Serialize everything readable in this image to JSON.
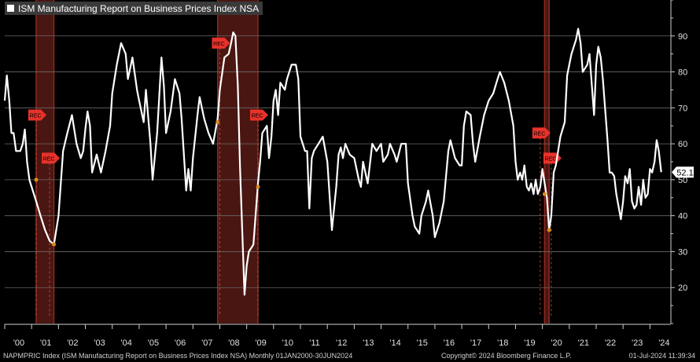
{
  "legend": {
    "label": "ISM Manufacturing Report on Business Prices Index NSA"
  },
  "footer": {
    "source": "NAPMPRIC Index (ISM Manufacturing Report on Business Prices Index NSA)  Monthly 01JAN2000-30JUN2024",
    "copyright": "Copyright© 2024 Bloomberg Finance L.P.",
    "timestamp": "01-Jul-2024 11:39:34"
  },
  "colors": {
    "background": "#000000",
    "line": "#ffffff",
    "grid": "#6a6a6a",
    "recession_shade": "#4a1612",
    "recession_edge": "#8a2a22",
    "rec_marker": "#e8322a",
    "dot": "#d98a1c",
    "last_label_bg": "#ffffff",
    "last_label_text": "#000000"
  },
  "chart_data": {
    "type": "line",
    "title": "ISM Manufacturing Report on Business Prices Index NSA",
    "series": [
      {
        "name": "ISM Manufacturing Report on Business Prices Index NSA",
        "points": [
          [
            2000.0,
            72
          ],
          [
            2000.08,
            79
          ],
          [
            2000.17,
            72
          ],
          [
            2000.25,
            63
          ],
          [
            2000.33,
            63
          ],
          [
            2000.42,
            58
          ],
          [
            2000.5,
            58
          ],
          [
            2000.58,
            58
          ],
          [
            2000.67,
            60
          ],
          [
            2000.75,
            64
          ],
          [
            2000.83,
            55
          ],
          [
            2000.92,
            50
          ],
          [
            2001.0,
            48
          ],
          [
            2001.17,
            44
          ],
          [
            2001.33,
            40
          ],
          [
            2001.5,
            36
          ],
          [
            2001.67,
            33
          ],
          [
            2001.83,
            32
          ],
          [
            2002.0,
            40
          ],
          [
            2002.17,
            58
          ],
          [
            2002.33,
            63
          ],
          [
            2002.5,
            68
          ],
          [
            2002.67,
            60
          ],
          [
            2002.83,
            56
          ],
          [
            2002.92,
            58
          ],
          [
            2003.0,
            64
          ],
          [
            2003.08,
            69
          ],
          [
            2003.17,
            65
          ],
          [
            2003.25,
            52
          ],
          [
            2003.42,
            57
          ],
          [
            2003.58,
            52
          ],
          [
            2003.75,
            58
          ],
          [
            2003.92,
            65
          ],
          [
            2004.0,
            74
          ],
          [
            2004.17,
            82
          ],
          [
            2004.33,
            88
          ],
          [
            2004.5,
            85
          ],
          [
            2004.58,
            78
          ],
          [
            2004.75,
            84
          ],
          [
            2004.92,
            75
          ],
          [
            2005.0,
            72
          ],
          [
            2005.17,
            66
          ],
          [
            2005.25,
            75
          ],
          [
            2005.42,
            60
          ],
          [
            2005.5,
            50
          ],
          [
            2005.67,
            63
          ],
          [
            2005.83,
            84
          ],
          [
            2005.92,
            76
          ],
          [
            2006.0,
            63
          ],
          [
            2006.17,
            69
          ],
          [
            2006.33,
            78
          ],
          [
            2006.5,
            74
          ],
          [
            2006.58,
            67
          ],
          [
            2006.75,
            47
          ],
          [
            2006.83,
            53
          ],
          [
            2006.92,
            47
          ],
          [
            2007.0,
            56
          ],
          [
            2007.17,
            68
          ],
          [
            2007.25,
            73
          ],
          [
            2007.42,
            67
          ],
          [
            2007.58,
            63
          ],
          [
            2007.75,
            60
          ],
          [
            2007.92,
            67
          ],
          [
            2008.0,
            75
          ],
          [
            2008.17,
            84
          ],
          [
            2008.33,
            85
          ],
          [
            2008.42,
            88
          ],
          [
            2008.5,
            91
          ],
          [
            2008.58,
            90
          ],
          [
            2008.67,
            76
          ],
          [
            2008.75,
            54
          ],
          [
            2008.83,
            37
          ],
          [
            2008.92,
            18
          ],
          [
            2009.0,
            26
          ],
          [
            2009.08,
            30
          ],
          [
            2009.17,
            31
          ],
          [
            2009.25,
            32
          ],
          [
            2009.42,
            49
          ],
          [
            2009.5,
            55
          ],
          [
            2009.58,
            63
          ],
          [
            2009.75,
            65
          ],
          [
            2009.83,
            56
          ],
          [
            2009.92,
            62
          ],
          [
            2010.0,
            72
          ],
          [
            2010.08,
            75
          ],
          [
            2010.17,
            68
          ],
          [
            2010.25,
            77
          ],
          [
            2010.42,
            75
          ],
          [
            2010.5,
            78
          ],
          [
            2010.67,
            82
          ],
          [
            2010.83,
            82
          ],
          [
            2010.92,
            78
          ],
          [
            2011.0,
            62
          ],
          [
            2011.17,
            58
          ],
          [
            2011.25,
            58
          ],
          [
            2011.33,
            42
          ],
          [
            2011.42,
            56
          ],
          [
            2011.5,
            58
          ],
          [
            2011.67,
            60
          ],
          [
            2011.83,
            62
          ],
          [
            2012.0,
            55
          ],
          [
            2012.17,
            36
          ],
          [
            2012.33,
            48
          ],
          [
            2012.42,
            57
          ],
          [
            2012.5,
            59
          ],
          [
            2012.58,
            56
          ],
          [
            2012.67,
            60
          ],
          [
            2012.83,
            57
          ],
          [
            2013.0,
            56
          ],
          [
            2013.17,
            50
          ],
          [
            2013.25,
            48
          ],
          [
            2013.33,
            55
          ],
          [
            2013.5,
            49
          ],
          [
            2013.67,
            60
          ],
          [
            2013.83,
            58
          ],
          [
            2014.0,
            60
          ],
          [
            2014.08,
            55
          ],
          [
            2014.25,
            57
          ],
          [
            2014.33,
            60
          ],
          [
            2014.5,
            57
          ],
          [
            2014.58,
            55
          ],
          [
            2014.75,
            60
          ],
          [
            2014.92,
            60
          ],
          [
            2015.0,
            49
          ],
          [
            2015.17,
            40
          ],
          [
            2015.25,
            37
          ],
          [
            2015.42,
            35
          ],
          [
            2015.5,
            40
          ],
          [
            2015.67,
            44
          ],
          [
            2015.75,
            47
          ],
          [
            2015.92,
            40
          ],
          [
            2016.0,
            34
          ],
          [
            2016.17,
            38
          ],
          [
            2016.33,
            44
          ],
          [
            2016.5,
            58
          ],
          [
            2016.58,
            61
          ],
          [
            2016.75,
            56
          ],
          [
            2016.92,
            54
          ],
          [
            2017.0,
            54
          ],
          [
            2017.08,
            65
          ],
          [
            2017.17,
            69
          ],
          [
            2017.33,
            68
          ],
          [
            2017.42,
            60
          ],
          [
            2017.5,
            55
          ],
          [
            2017.67,
            62
          ],
          [
            2017.83,
            68
          ],
          [
            2018.0,
            72
          ],
          [
            2018.17,
            74
          ],
          [
            2018.33,
            78
          ],
          [
            2018.42,
            80
          ],
          [
            2018.58,
            77
          ],
          [
            2018.75,
            72
          ],
          [
            2018.92,
            65
          ],
          [
            2019.0,
            55
          ],
          [
            2019.08,
            50
          ],
          [
            2019.17,
            52
          ],
          [
            2019.25,
            50
          ],
          [
            2019.33,
            54
          ],
          [
            2019.42,
            48
          ],
          [
            2019.5,
            47
          ],
          [
            2019.58,
            49
          ],
          [
            2019.67,
            46
          ],
          [
            2019.75,
            50
          ],
          [
            2019.83,
            46
          ],
          [
            2019.92,
            48
          ],
          [
            2020.0,
            53
          ],
          [
            2020.17,
            45
          ],
          [
            2020.25,
            36
          ],
          [
            2020.33,
            40
          ],
          [
            2020.42,
            52
          ],
          [
            2020.5,
            54
          ],
          [
            2020.67,
            62
          ],
          [
            2020.83,
            66
          ],
          [
            2020.92,
            79
          ],
          [
            2021.0,
            82
          ],
          [
            2021.08,
            85
          ],
          [
            2021.25,
            89
          ],
          [
            2021.33,
            92
          ],
          [
            2021.42,
            88
          ],
          [
            2021.5,
            80
          ],
          [
            2021.67,
            82
          ],
          [
            2021.75,
            85
          ],
          [
            2021.92,
            68
          ],
          [
            2022.0,
            82
          ],
          [
            2022.08,
            87
          ],
          [
            2022.17,
            84
          ],
          [
            2022.25,
            78
          ],
          [
            2022.42,
            61
          ],
          [
            2022.5,
            52
          ],
          [
            2022.58,
            52
          ],
          [
            2022.67,
            51
          ],
          [
            2022.75,
            46
          ],
          [
            2022.92,
            39
          ],
          [
            2023.0,
            44
          ],
          [
            2023.08,
            51
          ],
          [
            2023.17,
            49
          ],
          [
            2023.25,
            53
          ],
          [
            2023.33,
            44
          ],
          [
            2023.42,
            42
          ],
          [
            2023.5,
            43
          ],
          [
            2023.58,
            48
          ],
          [
            2023.67,
            43
          ],
          [
            2023.75,
            50
          ],
          [
            2023.83,
            45
          ],
          [
            2023.92,
            46
          ],
          [
            2024.0,
            53
          ],
          [
            2024.08,
            52
          ],
          [
            2024.17,
            55
          ],
          [
            2024.25,
            61
          ],
          [
            2024.33,
            58
          ],
          [
            2024.42,
            52.1
          ]
        ]
      }
    ],
    "last_value": "52.1",
    "y_ticks": [
      20,
      30,
      40,
      50,
      60,
      70,
      80,
      90
    ],
    "ylim": [
      10,
      100
    ],
    "xlim": [
      2000.0,
      2024.75
    ],
    "x_ticks": [
      {
        "label": "'00",
        "year": 2000
      },
      {
        "label": "'01",
        "year": 2001
      },
      {
        "label": "'02",
        "year": 2002
      },
      {
        "label": "'03",
        "year": 2003
      },
      {
        "label": "'04",
        "year": 2004
      },
      {
        "label": "'05",
        "year": 2005
      },
      {
        "label": "'06",
        "year": 2006
      },
      {
        "label": "'07",
        "year": 2007
      },
      {
        "label": "'08",
        "year": 2008
      },
      {
        "label": "'09",
        "year": 2009
      },
      {
        "label": "'10",
        "year": 2010
      },
      {
        "label": "'11",
        "year": 2011
      },
      {
        "label": "'12",
        "year": 2012
      },
      {
        "label": "'13",
        "year": 2013
      },
      {
        "label": "'14",
        "year": 2014
      },
      {
        "label": "'15",
        "year": 2015
      },
      {
        "label": "'16",
        "year": 2016
      },
      {
        "label": "'17",
        "year": 2017
      },
      {
        "label": "'18",
        "year": 2018
      },
      {
        "label": "'19",
        "year": 2019
      },
      {
        "label": "'20",
        "year": 2020
      },
      {
        "label": "'21",
        "year": 2021
      },
      {
        "label": "'22",
        "year": 2022
      },
      {
        "label": "'23",
        "year": 2023
      },
      {
        "label": "'24",
        "year": 2024
      }
    ],
    "recessions": [
      {
        "start": 2001.17,
        "end": 2001.83,
        "start_value": 50,
        "end_value": 32
      },
      {
        "start": 2007.92,
        "end": 2009.42,
        "start_value": 66,
        "end_value": 48
      },
      {
        "start": 2020.08,
        "end": 2020.25,
        "start_value": 46,
        "end_value": 36
      }
    ],
    "markers": [
      {
        "label": "REC",
        "year": 2001.17,
        "value": 68
      },
      {
        "label": "REC",
        "year": 2001.67,
        "value": 56
      },
      {
        "label": "REC",
        "year": 2008.0,
        "value": 88
      },
      {
        "label": "REC",
        "year": 2009.42,
        "value": 68
      },
      {
        "label": "REC",
        "year": 2019.92,
        "value": 63
      },
      {
        "label": "REC",
        "year": 2020.33,
        "value": 56
      }
    ],
    "grid": true,
    "legend_position": "top-left"
  }
}
